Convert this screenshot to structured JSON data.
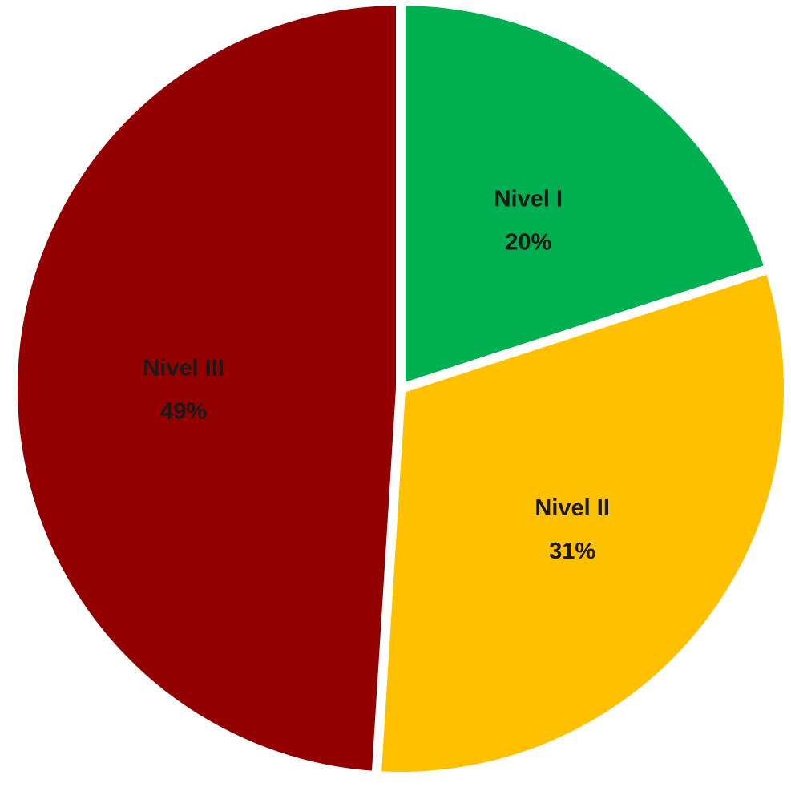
{
  "chart_data": {
    "type": "pie",
    "title": "",
    "slices": [
      {
        "label": "Nivel I",
        "percent_label": "20%",
        "value": 20,
        "color": "#00b050"
      },
      {
        "label": "Nivel II",
        "percent_label": "31%",
        "value": 31,
        "color": "#ffc000"
      },
      {
        "label": "Nivel III",
        "percent_label": "49%",
        "value": 49,
        "color": "#920000"
      }
    ],
    "exploded": true,
    "legend": "none",
    "start_angle": "12 o'clock",
    "direction": "clockwise"
  }
}
